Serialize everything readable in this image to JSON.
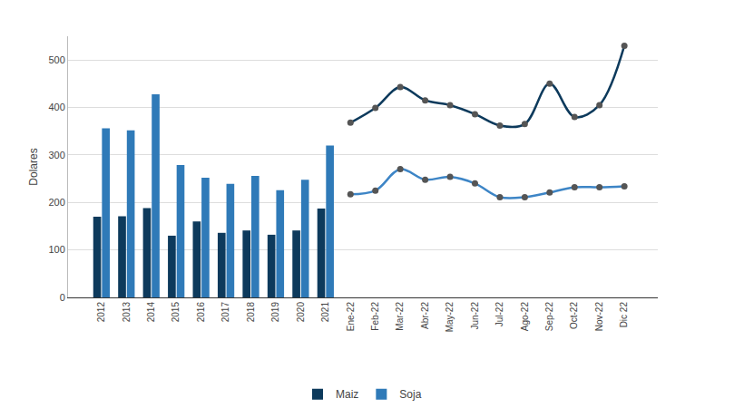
{
  "chart_data": {
    "type": "bar",
    "y_label": "Dolares",
    "categories": [
      "2012",
      "2013",
      "2014",
      "2015",
      "2016",
      "2017",
      "2018",
      "2019",
      "2020",
      "2021",
      "Ene-22",
      "Feb-22",
      "Mar-22",
      "Abr-22",
      "May-22",
      "Jun-22",
      "Jul-22",
      "Ago-22",
      "Sep-22",
      "Oct-22",
      "Nov-22",
      "Dic 22"
    ],
    "series": [
      {
        "name": "Maiz",
        "type": "bar",
        "color": "#0d3a5c",
        "values": [
          170,
          171,
          188,
          130,
          160,
          136,
          141,
          132,
          141,
          187,
          null,
          null,
          null,
          null,
          null,
          null,
          null,
          null,
          null,
          null,
          null,
          null
        ]
      },
      {
        "name": "Soja",
        "type": "bar",
        "color": "#2f7ab8",
        "values": [
          356,
          352,
          428,
          279,
          252,
          239,
          256,
          226,
          248,
          320,
          null,
          null,
          null,
          null,
          null,
          null,
          null,
          null,
          null,
          null,
          null,
          null
        ]
      },
      {
        "name": "Maiz",
        "type": "line",
        "color": "#0d3a5c",
        "marker": "circle",
        "values": [
          null,
          null,
          null,
          null,
          null,
          null,
          null,
          null,
          null,
          null,
          368,
          399,
          443,
          415,
          405,
          386,
          362,
          365,
          450,
          380,
          405,
          530
        ]
      },
      {
        "name": "Soja",
        "type": "line",
        "color": "#3d85c6",
        "marker": "circle",
        "values": [
          null,
          null,
          null,
          null,
          null,
          null,
          null,
          null,
          null,
          null,
          217,
          225,
          270,
          248,
          254,
          240,
          211,
          211,
          221,
          232,
          232,
          234
        ]
      }
    ],
    "ylim": [
      0,
      550
    ],
    "yticks": [
      0,
      100,
      200,
      300,
      400,
      500
    ],
    "grid": true,
    "legend": "bottom"
  }
}
